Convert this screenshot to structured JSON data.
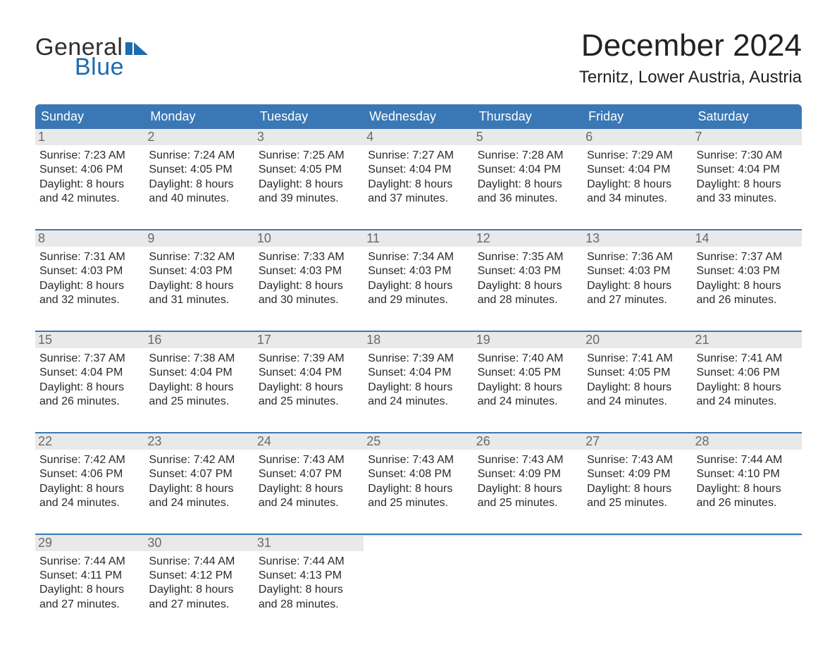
{
  "logo": {
    "word1": "General",
    "word2": "Blue",
    "flag_color": "#1f6bb0",
    "text_dark": "#2f2f2f"
  },
  "title": "December 2024",
  "subtitle": "Ternitz, Lower Austria, Austria",
  "colors": {
    "header_bg": "#3a78b5",
    "header_text": "#ffffff",
    "daynum_bg": "#e9e9e9",
    "daynum_text": "#6a6a6a",
    "week_border": "#3a78b5",
    "body_text": "#2a2a2a",
    "page_bg": "#ffffff"
  },
  "fonts": {
    "title_size_pt": 33,
    "subtitle_size_pt": 18,
    "dow_size_pt": 14,
    "body_size_pt": 12
  },
  "dow": [
    "Sunday",
    "Monday",
    "Tuesday",
    "Wednesday",
    "Thursday",
    "Friday",
    "Saturday"
  ],
  "labels": {
    "sunrise": "Sunrise",
    "sunset": "Sunset",
    "daylight": "Daylight"
  },
  "weeks": [
    [
      {
        "n": "1",
        "sunrise": "7:23 AM",
        "sunset": "4:06 PM",
        "dl1": "8 hours",
        "dl2": "and 42 minutes."
      },
      {
        "n": "2",
        "sunrise": "7:24 AM",
        "sunset": "4:05 PM",
        "dl1": "8 hours",
        "dl2": "and 40 minutes."
      },
      {
        "n": "3",
        "sunrise": "7:25 AM",
        "sunset": "4:05 PM",
        "dl1": "8 hours",
        "dl2": "and 39 minutes."
      },
      {
        "n": "4",
        "sunrise": "7:27 AM",
        "sunset": "4:04 PM",
        "dl1": "8 hours",
        "dl2": "and 37 minutes."
      },
      {
        "n": "5",
        "sunrise": "7:28 AM",
        "sunset": "4:04 PM",
        "dl1": "8 hours",
        "dl2": "and 36 minutes."
      },
      {
        "n": "6",
        "sunrise": "7:29 AM",
        "sunset": "4:04 PM",
        "dl1": "8 hours",
        "dl2": "and 34 minutes."
      },
      {
        "n": "7",
        "sunrise": "7:30 AM",
        "sunset": "4:04 PM",
        "dl1": "8 hours",
        "dl2": "and 33 minutes."
      }
    ],
    [
      {
        "n": "8",
        "sunrise": "7:31 AM",
        "sunset": "4:03 PM",
        "dl1": "8 hours",
        "dl2": "and 32 minutes."
      },
      {
        "n": "9",
        "sunrise": "7:32 AM",
        "sunset": "4:03 PM",
        "dl1": "8 hours",
        "dl2": "and 31 minutes."
      },
      {
        "n": "10",
        "sunrise": "7:33 AM",
        "sunset": "4:03 PM",
        "dl1": "8 hours",
        "dl2": "and 30 minutes."
      },
      {
        "n": "11",
        "sunrise": "7:34 AM",
        "sunset": "4:03 PM",
        "dl1": "8 hours",
        "dl2": "and 29 minutes."
      },
      {
        "n": "12",
        "sunrise": "7:35 AM",
        "sunset": "4:03 PM",
        "dl1": "8 hours",
        "dl2": "and 28 minutes."
      },
      {
        "n": "13",
        "sunrise": "7:36 AM",
        "sunset": "4:03 PM",
        "dl1": "8 hours",
        "dl2": "and 27 minutes."
      },
      {
        "n": "14",
        "sunrise": "7:37 AM",
        "sunset": "4:03 PM",
        "dl1": "8 hours",
        "dl2": "and 26 minutes."
      }
    ],
    [
      {
        "n": "15",
        "sunrise": "7:37 AM",
        "sunset": "4:04 PM",
        "dl1": "8 hours",
        "dl2": "and 26 minutes."
      },
      {
        "n": "16",
        "sunrise": "7:38 AM",
        "sunset": "4:04 PM",
        "dl1": "8 hours",
        "dl2": "and 25 minutes."
      },
      {
        "n": "17",
        "sunrise": "7:39 AM",
        "sunset": "4:04 PM",
        "dl1": "8 hours",
        "dl2": "and 25 minutes."
      },
      {
        "n": "18",
        "sunrise": "7:39 AM",
        "sunset": "4:04 PM",
        "dl1": "8 hours",
        "dl2": "and 24 minutes."
      },
      {
        "n": "19",
        "sunrise": "7:40 AM",
        "sunset": "4:05 PM",
        "dl1": "8 hours",
        "dl2": "and 24 minutes."
      },
      {
        "n": "20",
        "sunrise": "7:41 AM",
        "sunset": "4:05 PM",
        "dl1": "8 hours",
        "dl2": "and 24 minutes."
      },
      {
        "n": "21",
        "sunrise": "7:41 AM",
        "sunset": "4:06 PM",
        "dl1": "8 hours",
        "dl2": "and 24 minutes."
      }
    ],
    [
      {
        "n": "22",
        "sunrise": "7:42 AM",
        "sunset": "4:06 PM",
        "dl1": "8 hours",
        "dl2": "and 24 minutes."
      },
      {
        "n": "23",
        "sunrise": "7:42 AM",
        "sunset": "4:07 PM",
        "dl1": "8 hours",
        "dl2": "and 24 minutes."
      },
      {
        "n": "24",
        "sunrise": "7:43 AM",
        "sunset": "4:07 PM",
        "dl1": "8 hours",
        "dl2": "and 24 minutes."
      },
      {
        "n": "25",
        "sunrise": "7:43 AM",
        "sunset": "4:08 PM",
        "dl1": "8 hours",
        "dl2": "and 25 minutes."
      },
      {
        "n": "26",
        "sunrise": "7:43 AM",
        "sunset": "4:09 PM",
        "dl1": "8 hours",
        "dl2": "and 25 minutes."
      },
      {
        "n": "27",
        "sunrise": "7:43 AM",
        "sunset": "4:09 PM",
        "dl1": "8 hours",
        "dl2": "and 25 minutes."
      },
      {
        "n": "28",
        "sunrise": "7:44 AM",
        "sunset": "4:10 PM",
        "dl1": "8 hours",
        "dl2": "and 26 minutes."
      }
    ],
    [
      {
        "n": "29",
        "sunrise": "7:44 AM",
        "sunset": "4:11 PM",
        "dl1": "8 hours",
        "dl2": "and 27 minutes."
      },
      {
        "n": "30",
        "sunrise": "7:44 AM",
        "sunset": "4:12 PM",
        "dl1": "8 hours",
        "dl2": "and 27 minutes."
      },
      {
        "n": "31",
        "sunrise": "7:44 AM",
        "sunset": "4:13 PM",
        "dl1": "8 hours",
        "dl2": "and 28 minutes."
      },
      {
        "empty": true
      },
      {
        "empty": true
      },
      {
        "empty": true
      },
      {
        "empty": true
      }
    ]
  ]
}
